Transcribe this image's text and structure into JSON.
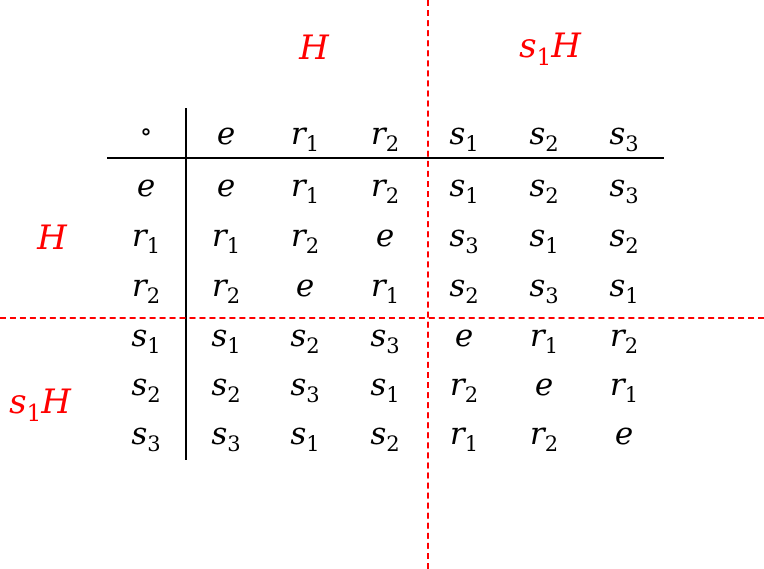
{
  "table": {
    "corner": "∘",
    "header": [
      {
        "sym": "e",
        "sub": ""
      },
      {
        "sym": "r",
        "sub": "1"
      },
      {
        "sym": "r",
        "sub": "2"
      },
      {
        "sym": "s",
        "sub": "1"
      },
      {
        "sym": "s",
        "sub": "2"
      },
      {
        "sym": "s",
        "sub": "3"
      }
    ],
    "rows": [
      {
        "head": {
          "sym": "e",
          "sub": ""
        },
        "cells": [
          {
            "sym": "e",
            "sub": ""
          },
          {
            "sym": "r",
            "sub": "1"
          },
          {
            "sym": "r",
            "sub": "2"
          },
          {
            "sym": "s",
            "sub": "1"
          },
          {
            "sym": "s",
            "sub": "2"
          },
          {
            "sym": "s",
            "sub": "3"
          }
        ]
      },
      {
        "head": {
          "sym": "r",
          "sub": "1"
        },
        "cells": [
          {
            "sym": "r",
            "sub": "1"
          },
          {
            "sym": "r",
            "sub": "2"
          },
          {
            "sym": "e",
            "sub": ""
          },
          {
            "sym": "s",
            "sub": "3"
          },
          {
            "sym": "s",
            "sub": "1"
          },
          {
            "sym": "s",
            "sub": "2"
          }
        ]
      },
      {
        "head": {
          "sym": "r",
          "sub": "2"
        },
        "cells": [
          {
            "sym": "r",
            "sub": "2"
          },
          {
            "sym": "e",
            "sub": ""
          },
          {
            "sym": "r",
            "sub": "1"
          },
          {
            "sym": "s",
            "sub": "2"
          },
          {
            "sym": "s",
            "sub": "3"
          },
          {
            "sym": "s",
            "sub": "1"
          }
        ]
      },
      {
        "head": {
          "sym": "s",
          "sub": "1"
        },
        "cells": [
          {
            "sym": "s",
            "sub": "1"
          },
          {
            "sym": "s",
            "sub": "2"
          },
          {
            "sym": "s",
            "sub": "3"
          },
          {
            "sym": "e",
            "sub": ""
          },
          {
            "sym": "r",
            "sub": "1"
          },
          {
            "sym": "r",
            "sub": "2"
          }
        ]
      },
      {
        "head": {
          "sym": "s",
          "sub": "2"
        },
        "cells": [
          {
            "sym": "s",
            "sub": "2"
          },
          {
            "sym": "s",
            "sub": "3"
          },
          {
            "sym": "s",
            "sub": "1"
          },
          {
            "sym": "r",
            "sub": "2"
          },
          {
            "sym": "e",
            "sub": ""
          },
          {
            "sym": "r",
            "sub": "1"
          }
        ]
      },
      {
        "head": {
          "sym": "s",
          "sub": "3"
        },
        "cells": [
          {
            "sym": "s",
            "sub": "3"
          },
          {
            "sym": "s",
            "sub": "1"
          },
          {
            "sym": "s",
            "sub": "2"
          },
          {
            "sym": "r",
            "sub": "1"
          },
          {
            "sym": "r",
            "sub": "2"
          },
          {
            "sym": "e",
            "sub": ""
          }
        ]
      }
    ]
  },
  "labels": {
    "top_left": {
      "sym": "H",
      "sub": ""
    },
    "top_right": {
      "sym": "s",
      "sub": "1",
      "tail": "H"
    },
    "left_top": {
      "sym": "H",
      "sub": ""
    },
    "left_bottom": {
      "sym": "s",
      "sub": "1",
      "tail": "H"
    }
  },
  "colors": {
    "coset_label": "#ff0000",
    "divider": "#ff0000",
    "table_text": "#000000"
  }
}
